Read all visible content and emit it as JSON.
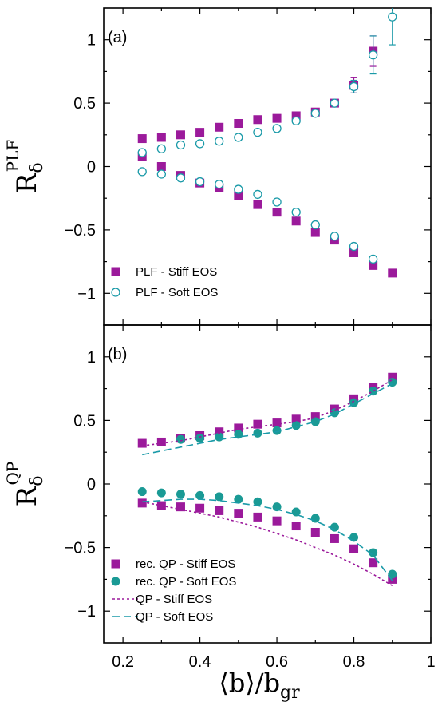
{
  "chart_data": [
    {
      "type": "scatter",
      "panel_label": "(a)",
      "ylabel": "R",
      "ylabel_sub": "δ",
      "ylabel_sup": "PLF",
      "xlim": [
        0.15,
        1.0
      ],
      "ylim": [
        -1.25,
        1.25
      ],
      "yticks": [
        {
          "v": 1,
          "label": "1"
        },
        {
          "v": 0.5,
          "label": "0.5"
        },
        {
          "v": 0,
          "label": "0"
        },
        {
          "v": -0.5,
          "label": "−0.5"
        },
        {
          "v": -1,
          "label": "−1"
        }
      ],
      "legend_position": "bottom-left",
      "series": [
        {
          "name": "PLF - Stiff EOS",
          "marker": "square-filled",
          "color": "#9b1a9b",
          "x": [
            0.25,
            0.3,
            0.35,
            0.4,
            0.45,
            0.5,
            0.55,
            0.6,
            0.65,
            0.7,
            0.75,
            0.8,
            0.85,
            0.9,
            0.25,
            0.3,
            0.35,
            0.4,
            0.45,
            0.5,
            0.55,
            0.6,
            0.65,
            0.7,
            0.75,
            0.8,
            0.85,
            0.9
          ],
          "y": [
            0.22,
            0.23,
            0.25,
            0.27,
            0.31,
            0.34,
            0.37,
            0.38,
            0.4,
            0.43,
            0.5,
            0.64,
            0.91,
            null,
            0.08,
            0.0,
            -0.07,
            -0.13,
            -0.17,
            -0.23,
            -0.3,
            -0.36,
            -0.43,
            -0.52,
            -0.58,
            -0.68,
            -0.78,
            -0.84
          ],
          "err": [
            0,
            0,
            0,
            0,
            0,
            0,
            0,
            0,
            0,
            0,
            0,
            0.06,
            0.12,
            0,
            0,
            0,
            0,
            0,
            0,
            0,
            0,
            0,
            0,
            0,
            0,
            0,
            0,
            0
          ]
        },
        {
          "name": "PLF - Soft EOS",
          "marker": "circle-open",
          "color": "#1a9aa8",
          "x": [
            0.25,
            0.3,
            0.35,
            0.4,
            0.45,
            0.5,
            0.55,
            0.6,
            0.65,
            0.7,
            0.75,
            0.8,
            0.85,
            0.9,
            0.25,
            0.3,
            0.35,
            0.4,
            0.45,
            0.5,
            0.55,
            0.6,
            0.65,
            0.7,
            0.75,
            0.8,
            0.85,
            0.25,
            0.3,
            0.35,
            0.4,
            0.45,
            0.5,
            0.55,
            0.6,
            0.65,
            0.7,
            0.75,
            0.8,
            0.85
          ],
          "y": [
            0.11,
            0.14,
            0.17,
            0.18,
            0.2,
            0.23,
            0.27,
            0.3,
            0.36,
            0.42,
            0.5,
            0.63,
            0.88,
            1.18,
            -0.04,
            -0.06,
            -0.09,
            -0.12,
            -0.14,
            -0.18,
            -0.22,
            -0.28,
            -0.36,
            -0.46,
            -0.55,
            -0.63,
            -0.73,
            null,
            null,
            null,
            null,
            null,
            null,
            null,
            null,
            null,
            null,
            null,
            null,
            null
          ],
          "err": [
            0,
            0,
            0,
            0,
            0,
            0,
            0,
            0,
            0,
            0,
            0,
            0.05,
            0.15,
            0.22,
            0,
            0,
            0,
            0,
            0,
            0,
            0,
            0,
            0,
            0,
            0,
            0,
            0,
            0,
            0,
            0,
            0,
            0,
            0,
            0,
            0,
            0,
            0,
            0,
            0,
            0
          ]
        }
      ]
    },
    {
      "type": "scatter",
      "panel_label": "(b)",
      "xlabel": "⟨b⟩/b",
      "xlabel_sub": "gr",
      "ylabel": "R",
      "ylabel_sub": "δ",
      "ylabel_sup": "QP",
      "xlim": [
        0.15,
        1.0
      ],
      "ylim": [
        -1.25,
        1.25
      ],
      "xticks": [
        {
          "v": 0.2,
          "label": "0.2"
        },
        {
          "v": 0.4,
          "label": "0.4"
        },
        {
          "v": 0.6,
          "label": "0.6"
        },
        {
          "v": 0.8,
          "label": "0.8"
        },
        {
          "v": 1.0,
          "label": "1"
        }
      ],
      "yticks": [
        {
          "v": 1,
          "label": "1"
        },
        {
          "v": 0.5,
          "label": "0.5"
        },
        {
          "v": 0,
          "label": "0"
        },
        {
          "v": -0.5,
          "label": "−0.5"
        },
        {
          "v": -1,
          "label": "−1"
        }
      ],
      "legend_position": "bottom-left",
      "series": [
        {
          "name": "rec. QP - Stiff EOS",
          "marker": "square-filled",
          "color": "#9b1a9b",
          "x": [
            0.25,
            0.3,
            0.35,
            0.4,
            0.45,
            0.5,
            0.55,
            0.6,
            0.65,
            0.7,
            0.75,
            0.8,
            0.85,
            0.9,
            0.25,
            0.3,
            0.35,
            0.4,
            0.45,
            0.5,
            0.55,
            0.6,
            0.65,
            0.7,
            0.75,
            0.8,
            0.85,
            0.9
          ],
          "y": [
            0.32,
            0.33,
            0.36,
            0.38,
            0.41,
            0.44,
            0.47,
            0.48,
            0.51,
            0.53,
            0.59,
            0.67,
            0.76,
            0.84,
            -0.15,
            -0.17,
            -0.18,
            -0.19,
            -0.21,
            -0.23,
            -0.26,
            -0.29,
            -0.33,
            -0.38,
            -0.43,
            -0.51,
            -0.62,
            -0.75
          ]
        },
        {
          "name": "rec. QP - Soft EOS",
          "marker": "circle-filled",
          "color": "#1a9a95",
          "x": [
            0.25,
            0.3,
            0.35,
            0.4,
            0.45,
            0.5,
            0.55,
            0.6,
            0.65,
            0.7,
            0.75,
            0.8,
            0.85,
            0.9,
            0.25,
            0.3,
            0.35,
            0.4,
            0.45,
            0.5,
            0.55,
            0.6,
            0.65,
            0.7,
            0.75,
            0.8,
            0.85,
            0.9
          ],
          "y": [
            null,
            null,
            0.35,
            0.36,
            0.37,
            0.39,
            0.4,
            0.42,
            0.46,
            0.49,
            0.56,
            0.64,
            0.73,
            0.8,
            -0.06,
            -0.07,
            -0.08,
            -0.09,
            -0.1,
            -0.12,
            -0.14,
            -0.18,
            -0.22,
            -0.27,
            -0.34,
            -0.42,
            -0.54,
            -0.71
          ]
        },
        {
          "name": "QP - Stiff EOS",
          "line": "dotted",
          "color": "#9b1a9b",
          "x": [
            0.25,
            0.3,
            0.35,
            0.4,
            0.45,
            0.5,
            0.55,
            0.6,
            0.65,
            0.7,
            0.75,
            0.8,
            0.85,
            0.9
          ],
          "y": [
            0.3,
            0.32,
            0.34,
            0.37,
            0.4,
            0.43,
            0.45,
            0.47,
            0.49,
            0.52,
            0.58,
            0.65,
            0.73,
            0.82
          ],
          "y2": [
            -0.14,
            -0.17,
            -0.2,
            -0.23,
            -0.26,
            -0.3,
            -0.34,
            -0.39,
            -0.44,
            -0.5,
            -0.56,
            -0.63,
            -0.71,
            -0.8
          ]
        },
        {
          "name": "QP - Soft EOS",
          "line": "dashed",
          "color": "#1a9aa8",
          "x": [
            0.25,
            0.3,
            0.35,
            0.4,
            0.45,
            0.5,
            0.55,
            0.6,
            0.65,
            0.7,
            0.75,
            0.8,
            0.85,
            0.9
          ],
          "y": [
            0.23,
            0.26,
            0.29,
            0.32,
            0.35,
            0.37,
            0.39,
            0.41,
            0.45,
            0.49,
            0.55,
            0.63,
            0.71,
            0.79
          ],
          "y2": [
            -0.14,
            -0.13,
            -0.12,
            -0.12,
            -0.13,
            -0.15,
            -0.17,
            -0.2,
            -0.24,
            -0.29,
            -0.36,
            -0.45,
            -0.56,
            -0.76
          ]
        }
      ]
    }
  ]
}
